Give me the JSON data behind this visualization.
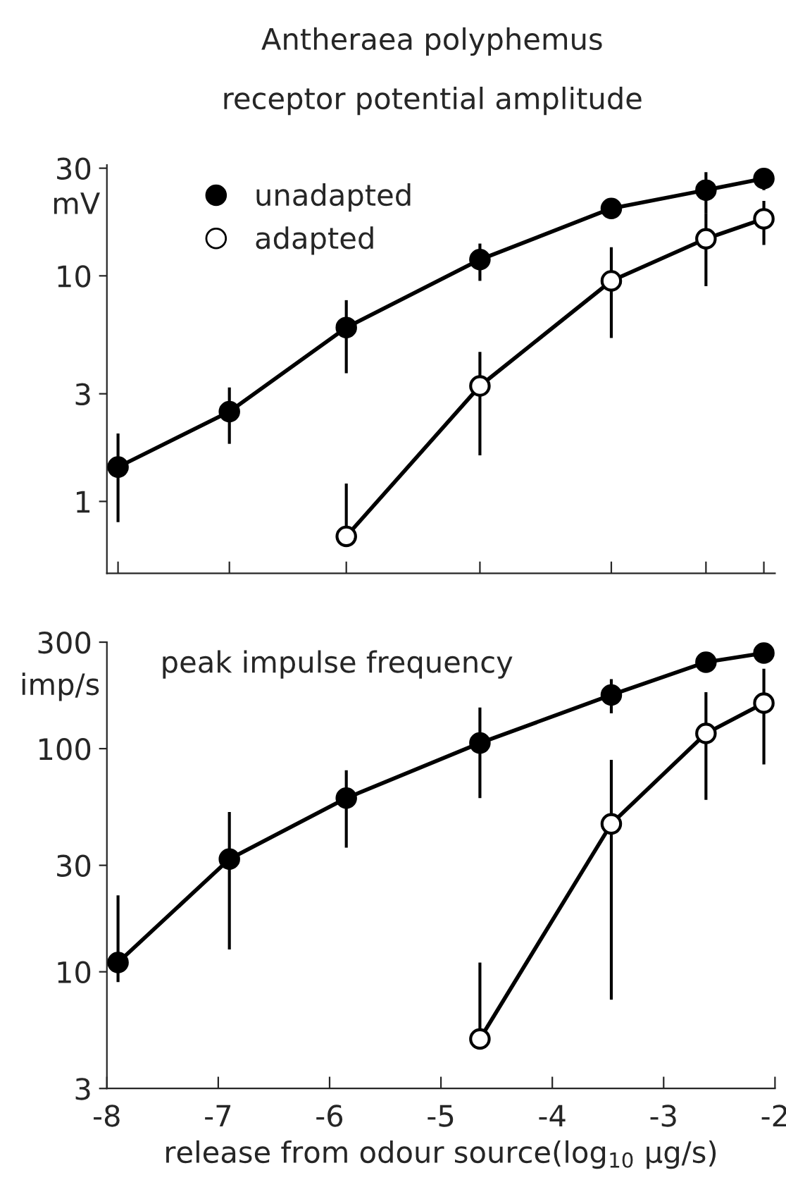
{
  "chart_data": [
    {
      "type": "line",
      "title": "Antheraea polyphemus",
      "subtitle": "receptor potential amplitude",
      "ylabel": "mV",
      "log": "y",
      "marker": "circle",
      "line_style": "solid",
      "legend": "top left",
      "grid": false,
      "tick_labels": "y",
      "xlim": [
        -8,
        -2
      ],
      "xticks": [
        {
          "value": -7.9,
          "label": null
        },
        {
          "value": -6.9,
          "label": null
        },
        {
          "value": -5.85,
          "label": null
        },
        {
          "value": -4.65,
          "label": null
        },
        {
          "value": -3.47,
          "label": null
        },
        {
          "value": -2.62,
          "label": null
        },
        {
          "value": -2.1,
          "label": null
        }
      ],
      "ylim": [
        0.48,
        31
      ],
      "yticks": [
        1,
        3,
        10,
        30
      ],
      "series": [
        {
          "name": "unadapted",
          "color": "#000000",
          "x": [
            -7.9,
            -6.9,
            -5.85,
            -4.65,
            -3.47,
            -2.62,
            -2.1
          ],
          "values": [
            1.42,
            2.5,
            5.9,
            11.8,
            19.9,
            24,
            27
          ],
          "errors": [
            [
              0.81,
              2.0
            ],
            [
              1.8,
              3.2
            ],
            [
              3.7,
              7.8
            ],
            [
              9.5,
              13.9
            ],
            null,
            [
              18.9,
              28.8
            ],
            [
              24,
              30
            ]
          ]
        },
        {
          "name": "adapted",
          "color": "#ffffff",
          "x": [
            -5.85,
            -4.65,
            -3.47,
            -2.62,
            -2.1
          ],
          "values": [
            0.7,
            3.25,
            9.5,
            14.6,
            17.9
          ],
          "errors": [
            [
              0.7,
              1.2
            ],
            [
              1.6,
              4.6
            ],
            [
              5.3,
              13.4
            ],
            [
              9.0,
              18.9
            ],
            [
              13.7,
              21.5
            ]
          ]
        }
      ]
    },
    {
      "type": "line",
      "title": "peak impulse frequency",
      "ylabel": "imp/s",
      "xlabel": "release from odour source(log$_{10}$ µg/s)",
      "log": "y",
      "marker": "circle",
      "line_style": "solid",
      "grid": false,
      "xlim": [
        -8,
        -2
      ],
      "xticks": [
        -8,
        -7,
        -6,
        -5,
        -4,
        -3,
        -2
      ],
      "ylim": [
        3,
        300
      ],
      "yticks": [
        3,
        10,
        30,
        100,
        300
      ],
      "series": [
        {
          "color": "#000000",
          "x": [
            -7.9,
            -6.9,
            -5.85,
            -4.65,
            -3.47,
            -2.62,
            -2.1
          ],
          "values": [
            11,
            32,
            60,
            106,
            174,
            244,
            268
          ],
          "errors": [
            [
              9,
              22
            ],
            [
              12.6,
              52
            ],
            [
              36,
              80
            ],
            [
              60,
              153
            ],
            [
              144,
              205
            ],
            null,
            null
          ]
        },
        {
          "color": "#ffffff",
          "x": [
            -4.65,
            -3.47,
            -2.62,
            -2.1
          ],
          "values": [
            5.0,
            46,
            117,
            160
          ],
          "errors": [
            [
              5.0,
              11
            ],
            [
              7.5,
              89
            ],
            [
              59,
              179
            ],
            [
              85,
              228
            ]
          ]
        }
      ]
    }
  ]
}
